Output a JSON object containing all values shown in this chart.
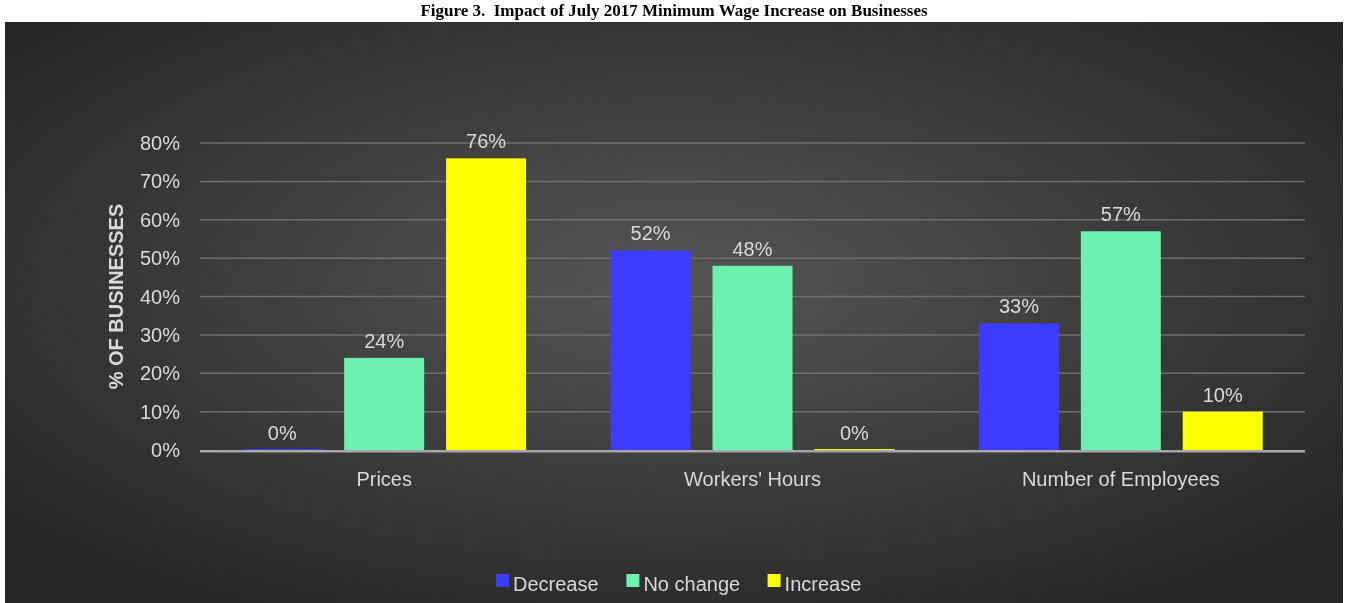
{
  "chart_data": {
    "type": "bar",
    "title": "Figure 3.  Impact of July 2017 Minimum Wage Increase on Businesses",
    "ylabel": "% OF BUSINESSES",
    "categories": [
      "Prices",
      "Workers' Hours",
      "Number of Employees"
    ],
    "series": [
      {
        "name": "Decrease",
        "color": "#3c3cff",
        "values": [
          0,
          52,
          33
        ],
        "value_labels": [
          "0%",
          "52%",
          "33%"
        ]
      },
      {
        "name": "No change",
        "color": "#6cf0b0",
        "values": [
          24,
          48,
          57
        ],
        "value_labels": [
          "24%",
          "48%",
          "57%"
        ]
      },
      {
        "name": "Increase",
        "color": "#ffff00",
        "values": [
          76,
          0,
          10
        ],
        "value_labels": [
          "76%",
          "0%",
          "10%"
        ]
      }
    ],
    "ylim": [
      0,
      80
    ],
    "yticks": [
      {
        "value": 0,
        "label": "0%"
      },
      {
        "value": 10,
        "label": "10%"
      },
      {
        "value": 20,
        "label": "20%"
      },
      {
        "value": 30,
        "label": "30%"
      },
      {
        "value": 40,
        "label": "40%"
      },
      {
        "value": 50,
        "label": "50%"
      },
      {
        "value": 60,
        "label": "60%"
      },
      {
        "value": 70,
        "label": "70%"
      },
      {
        "value": 80,
        "label": "80%"
      }
    ],
    "grid": "y",
    "legend": "bottom"
  }
}
